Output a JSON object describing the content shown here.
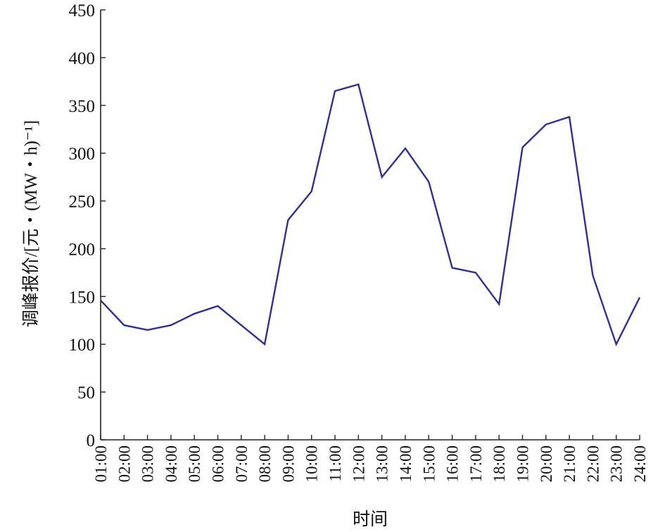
{
  "chart_data": {
    "type": "line",
    "title": "",
    "xlabel": "时间",
    "ylabel": "调峰报价/[元・(MW・h)⁻¹]",
    "ylim": [
      0,
      450
    ],
    "yticks": [
      0,
      50,
      100,
      150,
      200,
      250,
      300,
      350,
      400,
      450
    ],
    "categories": [
      "01:00",
      "02:00",
      "03:00",
      "04:00",
      "05:00",
      "06:00",
      "07:00",
      "08:00",
      "09:00",
      "10:00",
      "11:00",
      "12:00",
      "13:00",
      "14:00",
      "15:00",
      "16:00",
      "17:00",
      "18:00",
      "19:00",
      "20:00",
      "21:00",
      "22:00",
      "23:00",
      "24:00"
    ],
    "series": [
      {
        "values": [
          146,
          120,
          115,
          120,
          132,
          140,
          120,
          100,
          230,
          260,
          365,
          372,
          275,
          305,
          270,
          180,
          175,
          142,
          306,
          330,
          338,
          172,
          100,
          149
        ],
        "color": "#2e3192"
      }
    ],
    "grid": false,
    "legend": "none"
  }
}
